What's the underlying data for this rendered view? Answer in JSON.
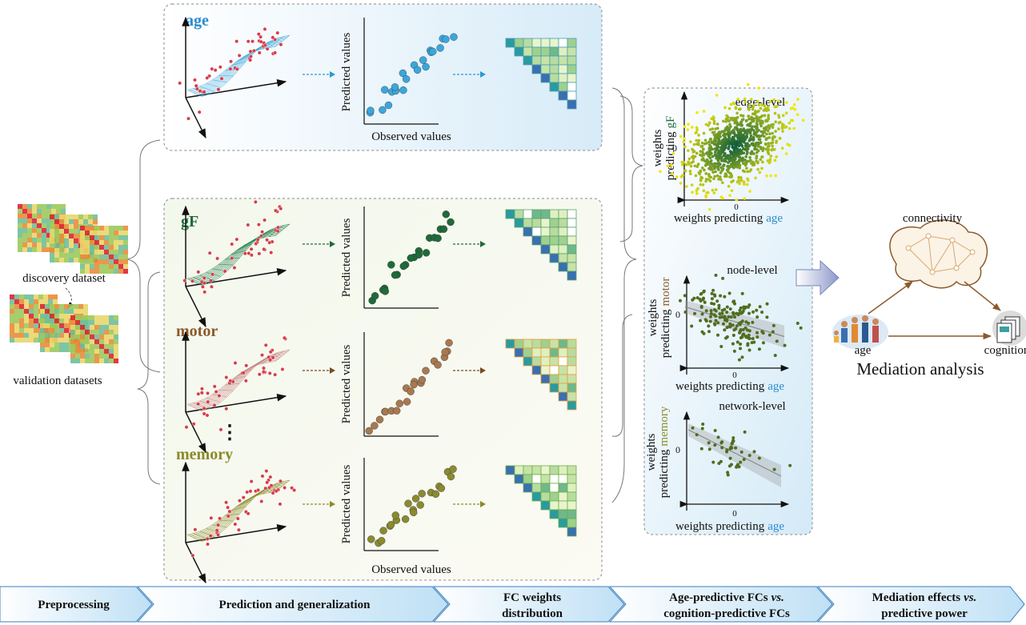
{
  "datasets": {
    "discovery": "discovery dataset",
    "validation": "validation datasets"
  },
  "prediction": {
    "y_label": "Predicted values",
    "x_label": "Observed values",
    "targets": [
      "age",
      "gF",
      "motor",
      "memory"
    ]
  },
  "weights": {
    "x_label": "weights predicting",
    "x_target": "age",
    "y_label_1": "weights",
    "y_label_2": "predicting",
    "tick": 0,
    "plots": [
      {
        "title": "edge-level",
        "target": "gF"
      },
      {
        "title": "node-level",
        "target": "motor"
      },
      {
        "title": "network-level",
        "target": "memory"
      }
    ]
  },
  "mediation": {
    "mediator": "connectivity",
    "predictor": "age",
    "outcome": "cognition",
    "title": "Mediation analysis"
  },
  "pipeline": {
    "stage_1": "Preprocessing",
    "stage_2": "Prediction and generalization",
    "stage_3": [
      "FC weights",
      "distribution"
    ],
    "stage_4": {
      "line1": "Age-predictive FCs",
      "vs": "vs.",
      "line2": "cognition-predictive FCs"
    },
    "stage_5": {
      "line1": "Mediation effects",
      "vs": "vs.",
      "line2": "predictive power"
    }
  }
}
